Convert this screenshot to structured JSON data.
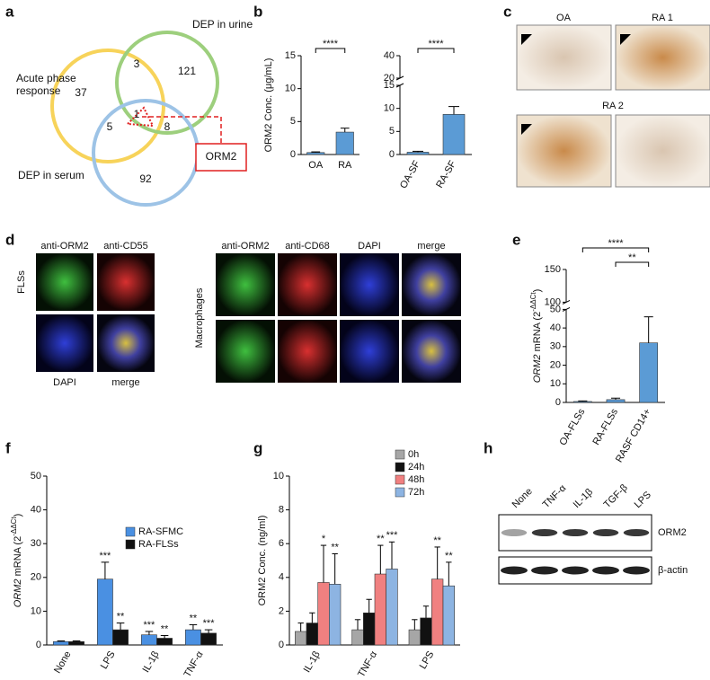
{
  "panel_labels": [
    "a",
    "b",
    "c",
    "d",
    "e",
    "f",
    "g",
    "h"
  ],
  "venn": {
    "sets": [
      [
        "Acute phase",
        "response"
      ],
      [
        "DEP in urine"
      ],
      [
        "DEP in serum"
      ]
    ],
    "counts": [
      37,
      3,
      121,
      5,
      1,
      8,
      92
    ],
    "highlight": "ORM2"
  },
  "chart_data": [
    {
      "type": "bar",
      "ylabel": "ORM2 Conc. (μg/mL)",
      "categories": [
        "OA",
        "RA"
      ],
      "values": [
        0.3,
        3.4
      ],
      "errors": [
        0.1,
        0.6
      ],
      "color": "#5b9bd5",
      "ylim": [
        0,
        15
      ],
      "yticks": [
        0,
        5,
        10,
        15
      ],
      "brackets": [
        {
          "pair": [
            0,
            1
          ],
          "label": "****"
        }
      ]
    },
    {
      "type": "bar",
      "categories": [
        "OA-SF",
        "RA-SF"
      ],
      "values": [
        0.5,
        8.7
      ],
      "errors": [
        0.2,
        1.7
      ],
      "color": "#5b9bd5",
      "ylim": [
        0,
        40
      ],
      "ybreak": [
        15,
        20
      ],
      "yticks": [
        0,
        5,
        10,
        15,
        20,
        40
      ],
      "brackets": [
        {
          "pair": [
            0,
            1
          ],
          "label": "****"
        }
      ]
    },
    {
      "type": "bar",
      "ylabel": [
        "ORM2",
        " mRNA (2",
        "-ΔΔCt",
        ")"
      ],
      "categories": [
        "OA-FLSs",
        "RA-FLSs",
        "RASF CD14+"
      ],
      "values": [
        0.5,
        1.5,
        32
      ],
      "errors": [
        0.3,
        0.8,
        14
      ],
      "color": "#5b9bd5",
      "ylim": [
        0,
        150
      ],
      "ybreak": [
        50,
        100
      ],
      "yticks": [
        0,
        10,
        20,
        30,
        40,
        50,
        100,
        150
      ],
      "brackets": [
        {
          "pair": [
            0,
            2
          ],
          "label": "****"
        },
        {
          "pair": [
            1,
            2
          ],
          "label": "**"
        }
      ]
    },
    {
      "type": "bar",
      "ylabel": [
        "ORM2",
        " mRNA (2",
        "-ΔΔCt",
        ")"
      ],
      "categories": [
        "None",
        "LPS",
        "IL-1β",
        "TNF-α"
      ],
      "series": [
        {
          "name": "RA-SFMC",
          "color": "#4a90e2",
          "values": [
            1,
            19.5,
            3,
            4.5
          ],
          "errors": [
            0.2,
            5,
            1,
            1.5
          ],
          "stars": [
            null,
            "***",
            "***",
            "**"
          ]
        },
        {
          "name": "RA-FLSs",
          "color": "#111111",
          "values": [
            1,
            4.5,
            2,
            3.5
          ],
          "errors": [
            0.2,
            2,
            0.8,
            1
          ],
          "stars": [
            null,
            "**",
            "**",
            "***"
          ]
        }
      ],
      "ylim": [
        0,
        50
      ],
      "yticks": [
        0,
        10,
        20,
        30,
        40,
        50
      ]
    },
    {
      "type": "bar",
      "ylabel": "ORM2 Conc. (ng/ml)",
      "categories": [
        "IL-1β",
        "TNF-α",
        "LPS"
      ],
      "series": [
        {
          "name": "0h",
          "color": "#a6a6a6",
          "values": [
            0.8,
            0.9,
            0.9
          ],
          "errors": [
            0.5,
            0.6,
            0.6
          ],
          "stars": [
            null,
            null,
            null
          ]
        },
        {
          "name": "24h",
          "color": "#111111",
          "values": [
            1.3,
            1.9,
            1.6
          ],
          "errors": [
            0.6,
            0.8,
            0.7
          ],
          "stars": [
            null,
            null,
            null
          ]
        },
        {
          "name": "48h",
          "color": "#f08080",
          "values": [
            3.7,
            4.2,
            3.9
          ],
          "errors": [
            2.2,
            1.7,
            1.9
          ],
          "stars": [
            "*",
            "**",
            "**"
          ]
        },
        {
          "name": "72h",
          "color": "#8db4e2",
          "values": [
            3.6,
            4.5,
            3.5
          ],
          "errors": [
            1.8,
            1.6,
            1.4
          ],
          "stars": [
            "**",
            "***",
            "**"
          ]
        }
      ],
      "ylim": [
        0,
        10
      ],
      "yticks": [
        0,
        2,
        4,
        6,
        8,
        10
      ]
    }
  ],
  "histology": {
    "labels": [
      "OA",
      "RA 1",
      "RA 2"
    ]
  },
  "immunofluorescence": {
    "fls": {
      "row_label": "FLSs",
      "top": [
        "anti-ORM2",
        "anti-CD55"
      ],
      "bottom": [
        "DAPI",
        "merge"
      ]
    },
    "macrophage": {
      "row_label": "Macrophages",
      "columns": [
        "anti-ORM2",
        "anti-CD68",
        "DAPI",
        "merge"
      ]
    }
  },
  "western_blot": {
    "lanes": [
      "None",
      "TNF-α",
      "IL-1β",
      "TGF-β",
      "LPS"
    ],
    "rows": [
      "ORM2",
      "β-actin"
    ]
  }
}
